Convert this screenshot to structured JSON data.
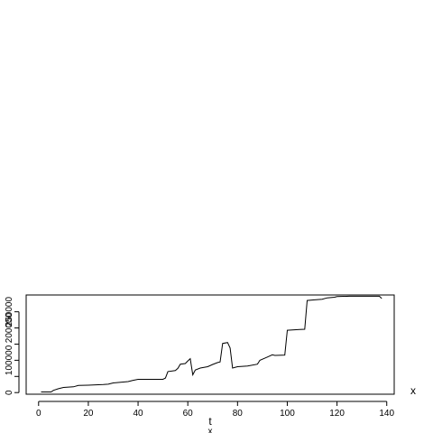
{
  "chart_data": {
    "type": "line",
    "title": "",
    "xlabel": "t",
    "ylabel": "",
    "sub_label": "x",
    "side_label": "x",
    "xlim": [
      -5,
      143
    ],
    "ylim": [
      -5000,
      302000
    ],
    "xticks": [
      0,
      20,
      40,
      60,
      80,
      100,
      120,
      140
    ],
    "yticks": [
      0,
      50000,
      100000,
      150000,
      200000,
      250000
    ],
    "ytick_labels": [
      "0",
      "",
      "100000",
      "",
      "200000",
      "250000"
    ],
    "grid": false,
    "series": [
      {
        "name": "",
        "color": "#000000",
        "points": [
          [
            1,
            2000
          ],
          [
            5,
            2000
          ],
          [
            6,
            7000
          ],
          [
            8,
            12000
          ],
          [
            10,
            16000
          ],
          [
            14,
            18000
          ],
          [
            16,
            22000
          ],
          [
            20,
            23000
          ],
          [
            26,
            25000
          ],
          [
            28,
            26000
          ],
          [
            30,
            30000
          ],
          [
            36,
            34000
          ],
          [
            38,
            38000
          ],
          [
            40,
            41000
          ],
          [
            50,
            41000
          ],
          [
            51,
            45000
          ],
          [
            52,
            65000
          ],
          [
            55,
            68000
          ],
          [
            56,
            75000
          ],
          [
            57,
            88000
          ],
          [
            59,
            90000
          ],
          [
            60,
            98000
          ],
          [
            61,
            105000
          ],
          [
            62,
            55000
          ],
          [
            63,
            70000
          ],
          [
            65,
            76000
          ],
          [
            68,
            80000
          ],
          [
            70,
            87000
          ],
          [
            72,
            93000
          ],
          [
            73,
            95000
          ],
          [
            74,
            152000
          ],
          [
            76,
            155000
          ],
          [
            77,
            138000
          ],
          [
            78,
            76000
          ],
          [
            80,
            80000
          ],
          [
            84,
            82000
          ],
          [
            88,
            88000
          ],
          [
            89,
            100000
          ],
          [
            92,
            110000
          ],
          [
            94,
            117000
          ],
          [
            95,
            115000
          ],
          [
            99,
            116000
          ],
          [
            100,
            193000
          ],
          [
            105,
            195000
          ],
          [
            107,
            196000
          ],
          [
            108,
            285000
          ],
          [
            111,
            287000
          ],
          [
            114,
            289000
          ],
          [
            116,
            293000
          ],
          [
            119,
            295000
          ],
          [
            120,
            297000
          ],
          [
            125,
            298000
          ],
          [
            131,
            298000
          ],
          [
            137,
            298000
          ],
          [
            138,
            291000
          ]
        ]
      }
    ]
  }
}
